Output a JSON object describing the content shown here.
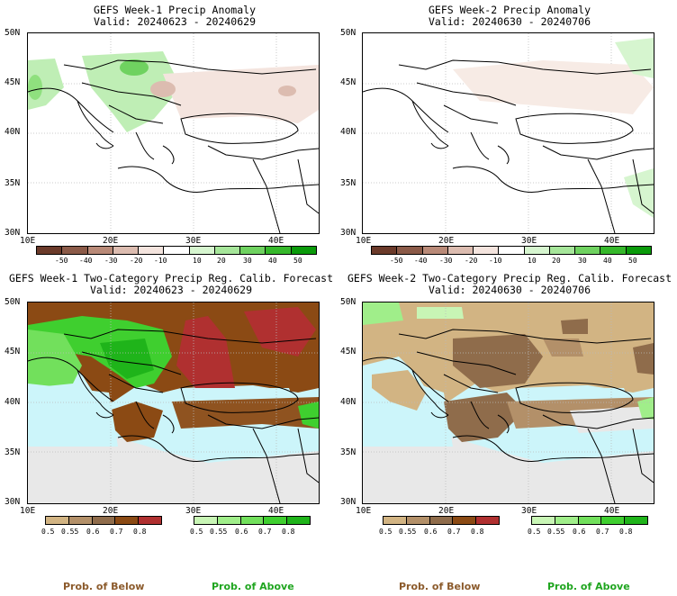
{
  "panels": [
    {
      "id": "p1",
      "title": "GEFS Week-1 Precip Anomaly",
      "valid": "Valid: 20240623 - 20240629"
    },
    {
      "id": "p2",
      "title": "GEFS Week-2 Precip Anomaly",
      "valid": "Valid: 20240630 - 20240706"
    },
    {
      "id": "p3",
      "title": "GEFS Week-1 Two-Category Precip Reg. Calib. Forecast",
      "valid": "Valid: 20240623 - 20240629"
    },
    {
      "id": "p4",
      "title": "GEFS Week-2 Two-Category Precip Reg. Calib. Forecast",
      "valid": "Valid: 20240630 - 20240706"
    }
  ],
  "lat_labels": [
    "50N",
    "45N",
    "40N",
    "35N",
    "30N"
  ],
  "lon_labels": [
    "10E",
    "20E",
    "30E",
    "40E"
  ],
  "anomaly_colorbar": {
    "ticks": [
      "-50",
      "-40",
      "-30",
      "-20",
      "-10",
      "10",
      "20",
      "30",
      "40",
      "50"
    ],
    "colors": [
      "#6b3a2a",
      "#8b5a48",
      "#b98a78",
      "#dcbcb0",
      "#f4e4de",
      "#ffffff",
      "#d6f5cf",
      "#a6e69a",
      "#6fd260",
      "#36b82b",
      "#0a9a0a"
    ]
  },
  "prob_below_colorbar": {
    "ticks": [
      "0.5",
      "0.55",
      "0.6",
      "0.7",
      "0.8"
    ],
    "colors": [
      "#d2b483",
      "#b39069",
      "#8f6c4b",
      "#8b4a14",
      "#b03030"
    ]
  },
  "prob_above_colorbar": {
    "ticks": [
      "0.5",
      "0.55",
      "0.6",
      "0.7",
      "0.8"
    ],
    "colors": [
      "#c8f5b5",
      "#a0ee8a",
      "#72e05c",
      "#3fcf2f",
      "#1fb41a"
    ]
  },
  "legend": {
    "below_label": "Prob. of Below",
    "above_label": "Prob. of Above",
    "below_color": "#8b5a2b",
    "above_color": "#1fa51f"
  },
  "colors": {
    "sea_forecast": "#ccf5fa",
    "land_gray": "#e8e8e8",
    "coast": "#000000"
  }
}
